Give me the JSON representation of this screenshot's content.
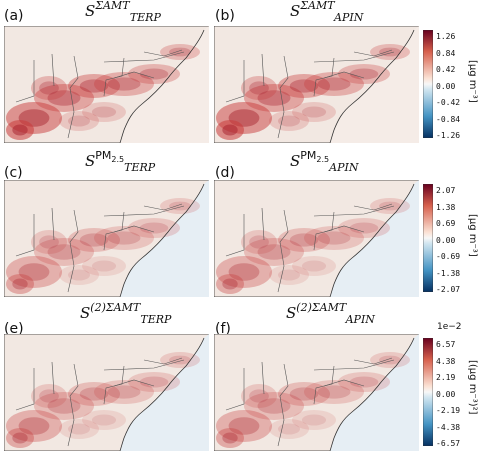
{
  "panels": [
    {
      "label": "(a)",
      "title": {
        "base": "S",
        "sup": "ΣAMT",
        "sub": "TERP"
      }
    },
    {
      "label": "(b)",
      "title": {
        "base": "S",
        "sup": "ΣAMT",
        "sub": "APIN"
      }
    },
    {
      "label": "(c)",
      "title": {
        "base": "S",
        "sup": "PM",
        "sup_sub": "2.5",
        "sub": "TERP"
      }
    },
    {
      "label": "(d)",
      "title": {
        "base": "S",
        "sup": "PM",
        "sup_sub": "2.5",
        "sub": "APIN"
      }
    },
    {
      "label": "(e)",
      "title": {
        "base": "S",
        "sup": "(2)ΣAMT",
        "sub": "TERP"
      }
    },
    {
      "label": "(f)",
      "title": {
        "base": "S",
        "sup": "(2)ΣAMT",
        "sub": "APIN"
      }
    }
  ],
  "colorbars": [
    {
      "ticks": [
        "1.26",
        "0.84",
        "0.42",
        "0.00",
        "-0.42",
        "-0.84",
        "-1.26"
      ],
      "unit": "[μg m⁻³]"
    },
    {
      "ticks": [
        "2.07",
        "1.38",
        "0.69",
        "0.00",
        "-0.69",
        "-1.38",
        "-2.07"
      ],
      "unit": "[μg m⁻³]"
    },
    {
      "ticks": [
        "6.57",
        "4.38",
        "2.19",
        "0.00",
        "-2.19",
        "-4.38",
        "-6.57"
      ],
      "unit": "[(μg m⁻³)²]",
      "exponent": "1e−2"
    }
  ],
  "colors": {
    "pos": "#b2182b",
    "neg": "#2166ac",
    "zero": "#f7f7f7",
    "border": "#555555"
  }
}
